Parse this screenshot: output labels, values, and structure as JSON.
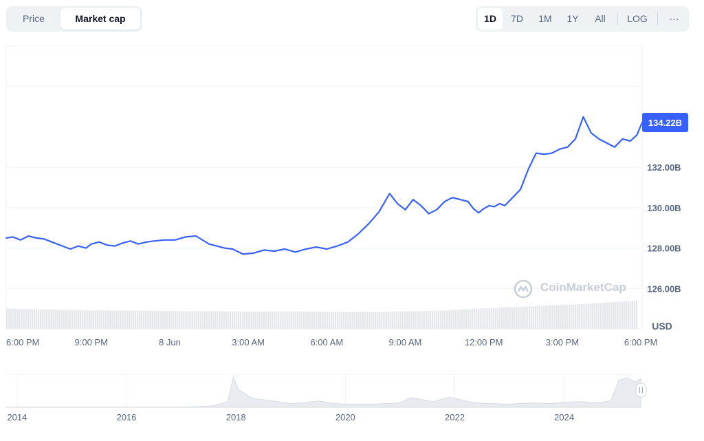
{
  "tabs": {
    "price": "Price",
    "market_cap": "Market cap",
    "active": "market_cap"
  },
  "ranges": {
    "items": [
      "1D",
      "7D",
      "1M",
      "1Y",
      "All"
    ],
    "active": "1D",
    "log": "LOG",
    "more": "···"
  },
  "watermark": "CoinMarketCap",
  "colors": {
    "line": "#3861fb",
    "badge": "#3861fb",
    "grid": "#eff2f5",
    "axis_text": "#58667e",
    "volume": "#e3e6ea",
    "navigator": "#d7dbe2"
  },
  "chart_data": {
    "type": "line",
    "title": "",
    "ylabel": "",
    "unit": "USD",
    "current_value_label": "134.22B",
    "ylim": [
      124.0,
      138.0
    ],
    "y_ticks": [
      126,
      128,
      130,
      132
    ],
    "y_tick_labels": [
      "126.00B",
      "128.00B",
      "130.00B",
      "132.00B"
    ],
    "x_range_hours": [
      -0.25,
      24.05
    ],
    "x_ticks": [
      0,
      3,
      6,
      9,
      12,
      15,
      18,
      21,
      24
    ],
    "x_tick_labels": [
      "6:00 PM",
      "9:00 PM",
      "8 Jun",
      "3:00 AM",
      "6:00 AM",
      "9:00 AM",
      "12:00 PM",
      "3:00 PM",
      "6:00 PM"
    ],
    "grid": true,
    "series": [
      {
        "x": [
          -0.25,
          0.0,
          0.3,
          0.6,
          0.9,
          1.2,
          1.5,
          1.9,
          2.2,
          2.5,
          2.8,
          3.0,
          3.3,
          3.6,
          3.9,
          4.2,
          4.5,
          4.8,
          5.1,
          5.4,
          5.8,
          6.2,
          6.6,
          7.0,
          7.5,
          7.8,
          8.1,
          8.4,
          8.8,
          9.2,
          9.6,
          10.0,
          10.4,
          10.8,
          11.2,
          11.6,
          12.0,
          12.4,
          12.8,
          13.2,
          13.6,
          14.0,
          14.4,
          14.7,
          15.0,
          15.3,
          15.6,
          15.9,
          16.2,
          16.5,
          16.8,
          17.1,
          17.4,
          17.6,
          17.8,
          18.0,
          18.2,
          18.4,
          18.6,
          18.8,
          19.1,
          19.4,
          19.7,
          20.0,
          20.3,
          20.6,
          20.9,
          21.2,
          21.5,
          21.8,
          22.1,
          22.4,
          22.7,
          23.0,
          23.3,
          23.6,
          23.85,
          24.05
        ],
        "y": [
          128.5,
          128.55,
          128.4,
          128.6,
          128.5,
          128.45,
          128.3,
          128.1,
          127.95,
          128.1,
          128.0,
          128.2,
          128.3,
          128.15,
          128.1,
          128.25,
          128.35,
          128.2,
          128.3,
          128.35,
          128.4,
          128.4,
          128.55,
          128.6,
          128.2,
          128.1,
          128.0,
          127.95,
          127.7,
          127.75,
          127.9,
          127.85,
          127.95,
          127.8,
          127.95,
          128.05,
          127.95,
          128.1,
          128.3,
          128.7,
          129.2,
          129.8,
          130.7,
          130.2,
          129.9,
          130.4,
          130.1,
          129.7,
          129.9,
          130.3,
          130.5,
          130.4,
          130.3,
          129.95,
          129.75,
          129.95,
          130.1,
          130.05,
          130.2,
          130.1,
          130.5,
          130.9,
          131.9,
          132.7,
          132.65,
          132.7,
          132.9,
          133.0,
          133.4,
          134.5,
          133.7,
          133.4,
          133.2,
          133.0,
          133.4,
          133.3,
          133.6,
          134.22
        ]
      }
    ],
    "volume_relative": [
      0.7,
      0.68,
      0.66,
      0.64,
      0.64,
      0.63,
      0.62,
      0.61,
      0.61,
      0.6,
      0.6,
      0.6,
      0.59,
      0.59,
      0.59,
      0.6,
      0.62,
      0.65,
      0.7,
      0.74,
      0.78,
      0.82,
      0.86,
      0.92,
      0.98
    ],
    "navigator": {
      "x_tick_labels": [
        "2014",
        "2016",
        "2018",
        "2020",
        "2022",
        "2024"
      ],
      "x_ticks": [
        2014,
        2016,
        2018,
        2020,
        2022,
        2024
      ],
      "x_range": [
        2013.8,
        2025.4
      ],
      "series_x": [
        2013.8,
        2014.5,
        2015.0,
        2015.5,
        2016.0,
        2016.5,
        2017.0,
        2017.3,
        2017.6,
        2017.85,
        2017.95,
        2018.05,
        2018.3,
        2018.6,
        2019.0,
        2019.3,
        2019.5,
        2019.8,
        2020.0,
        2020.5,
        2021.0,
        2021.2,
        2021.35,
        2021.6,
        2021.9,
        2022.3,
        2022.6,
        2023.0,
        2023.4,
        2023.8,
        2024.0,
        2024.3,
        2024.6,
        2024.85,
        2025.0,
        2025.15,
        2025.3,
        2025.4
      ],
      "series_y": [
        0.005,
        0.005,
        0.004,
        0.004,
        0.005,
        0.007,
        0.01,
        0.02,
        0.05,
        0.18,
        0.95,
        0.55,
        0.28,
        0.22,
        0.12,
        0.16,
        0.2,
        0.12,
        0.1,
        0.1,
        0.14,
        0.3,
        0.26,
        0.18,
        0.32,
        0.16,
        0.12,
        0.1,
        0.14,
        0.12,
        0.16,
        0.18,
        0.14,
        0.2,
        0.86,
        0.93,
        0.8,
        0.9
      ]
    }
  }
}
